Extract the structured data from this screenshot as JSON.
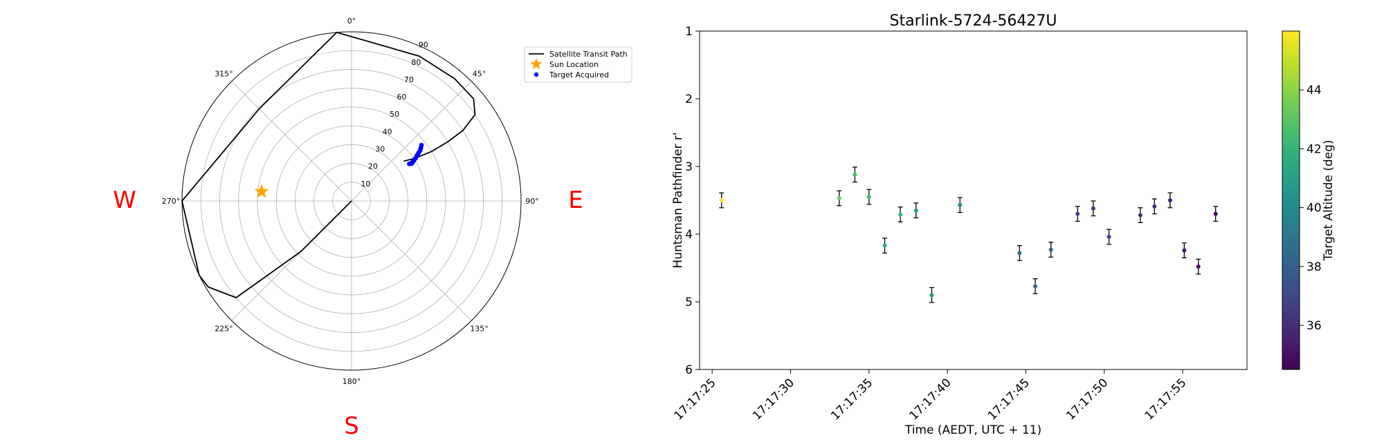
{
  "chart_data": [
    {
      "type": "scatter",
      "subtype": "polar",
      "theta_direction": "clockwise",
      "theta_zero": "top",
      "angle_ticks": [
        "0°",
        "45°",
        "90°",
        "135°",
        "180°",
        "225°",
        "270°",
        "315°"
      ],
      "radial_ticks": [
        "10",
        "20",
        "30",
        "40",
        "50",
        "60",
        "70",
        "80",
        "90"
      ],
      "radial_max": 90,
      "grid": true,
      "direction_labels": [
        {
          "label": "W",
          "angle_deg": 270
        },
        {
          "label": "E",
          "angle_deg": 90
        },
        {
          "label": "S",
          "angle_deg": 180
        }
      ],
      "direction_label_color": "#ff0000",
      "legend": {
        "placement": "upper-right-outside",
        "entries": [
          {
            "label": "Satellite Transit Path",
            "marker": "line",
            "color": "#000000"
          },
          {
            "label": "Sun Location",
            "marker": "star",
            "color": "#FFA500"
          },
          {
            "label": "Target Acquired",
            "marker": "dot",
            "color": "#0000ff"
          }
        ]
      },
      "transit_path": {
        "color": "#000000",
        "points": [
          {
            "az": 225,
            "r": 0
          },
          {
            "az": 225,
            "r": 38
          },
          {
            "az": 230,
            "r": 80
          },
          {
            "az": 239,
            "r": 88.8
          },
          {
            "az": 244,
            "r": 90
          },
          {
            "az": 270,
            "r": 90
          },
          {
            "az": 315,
            "r": 69.3
          },
          {
            "az": 355,
            "r": 90
          },
          {
            "az": 25,
            "r": 85
          },
          {
            "az": 40,
            "r": 85
          },
          {
            "az": 50,
            "r": 84.6
          },
          {
            "az": 55,
            "r": 80
          },
          {
            "az": 57.6,
            "r": 70
          },
          {
            "az": 58.4,
            "r": 60
          },
          {
            "az": 58.2,
            "r": 50
          },
          {
            "az": 55.8,
            "r": 40
          },
          {
            "az": 52.6,
            "r": 34.9
          }
        ]
      },
      "sun": {
        "az": 276,
        "r": 48,
        "color": "#FFA500"
      },
      "targets": {
        "color": "#0000ff",
        "points": [
          {
            "az": 57.2,
            "r": 36.5
          },
          {
            "az": 57.6,
            "r": 37.0
          },
          {
            "az": 58.1,
            "r": 37.6
          },
          {
            "az": 57.5,
            "r": 38.3
          },
          {
            "az": 57.1,
            "r": 39.2
          },
          {
            "az": 56.6,
            "r": 40.0
          },
          {
            "az": 56.3,
            "r": 40.8
          },
          {
            "az": 55.4,
            "r": 42.0
          },
          {
            "az": 54.8,
            "r": 43.0
          },
          {
            "az": 54.2,
            "r": 44.0
          },
          {
            "az": 53.6,
            "r": 45.2
          },
          {
            "az": 52.6,
            "r": 46.3
          },
          {
            "az": 51.4,
            "r": 47.5
          }
        ]
      }
    },
    {
      "type": "scatter",
      "title": "Starlink-5724-56427U",
      "xlabel": "Time (AEDT, UTC + 11)",
      "ylabel": "Huntsman Pathfinder r'",
      "x_ticks": [
        "17:17:25",
        "17:17:30",
        "17:17:35",
        "17:17:40",
        "17:17:45",
        "17:17:50",
        "17:17:55"
      ],
      "x_tick_values": [
        25,
        30,
        35,
        40,
        45,
        50,
        55
      ],
      "xlim": [
        24.2,
        59.1
      ],
      "ylim": [
        1,
        6
      ],
      "y_inverted": true,
      "y_ticks": [
        1,
        2,
        3,
        4,
        5,
        6
      ],
      "error_bar_color": "#000000",
      "colorbar": {
        "label": "Target Altitude (deg)",
        "colormap": "viridis",
        "range": [
          34.5,
          46
        ],
        "ticks": [
          36,
          38,
          40,
          42,
          44
        ]
      },
      "points": [
        {
          "t": 25.6,
          "mag": 3.5,
          "err": 0.11,
          "alt": 46.0
        },
        {
          "t": 33.1,
          "mag": 3.47,
          "err": 0.11,
          "alt": 43.2
        },
        {
          "t": 34.1,
          "mag": 3.12,
          "err": 0.11,
          "alt": 42.6
        },
        {
          "t": 35.0,
          "mag": 3.45,
          "err": 0.11,
          "alt": 42.5
        },
        {
          "t": 36.0,
          "mag": 4.17,
          "err": 0.11,
          "alt": 41.8
        },
        {
          "t": 37.0,
          "mag": 3.71,
          "err": 0.11,
          "alt": 42.2
        },
        {
          "t": 38.0,
          "mag": 3.65,
          "err": 0.11,
          "alt": 41.1
        },
        {
          "t": 39.0,
          "mag": 4.9,
          "err": 0.11,
          "alt": 40.9
        },
        {
          "t": 40.8,
          "mag": 3.57,
          "err": 0.11,
          "alt": 40.1
        },
        {
          "t": 44.6,
          "mag": 4.28,
          "err": 0.11,
          "alt": 38.7
        },
        {
          "t": 45.6,
          "mag": 4.77,
          "err": 0.11,
          "alt": 38.3
        },
        {
          "t": 46.6,
          "mag": 4.23,
          "err": 0.11,
          "alt": 37.9
        },
        {
          "t": 48.3,
          "mag": 3.7,
          "err": 0.11,
          "alt": 36.9
        },
        {
          "t": 49.3,
          "mag": 3.62,
          "err": 0.11,
          "alt": 36.5
        },
        {
          "t": 50.3,
          "mag": 4.04,
          "err": 0.11,
          "alt": 36.8
        },
        {
          "t": 52.3,
          "mag": 3.72,
          "err": 0.11,
          "alt": 36.1
        },
        {
          "t": 53.2,
          "mag": 3.59,
          "err": 0.11,
          "alt": 35.8
        },
        {
          "t": 54.2,
          "mag": 3.5,
          "err": 0.11,
          "alt": 35.5
        },
        {
          "t": 55.1,
          "mag": 4.24,
          "err": 0.11,
          "alt": 35.1
        },
        {
          "t": 56.0,
          "mag": 4.48,
          "err": 0.11,
          "alt": 34.9
        },
        {
          "t": 57.1,
          "mag": 3.7,
          "err": 0.11,
          "alt": 34.7
        }
      ]
    }
  ]
}
